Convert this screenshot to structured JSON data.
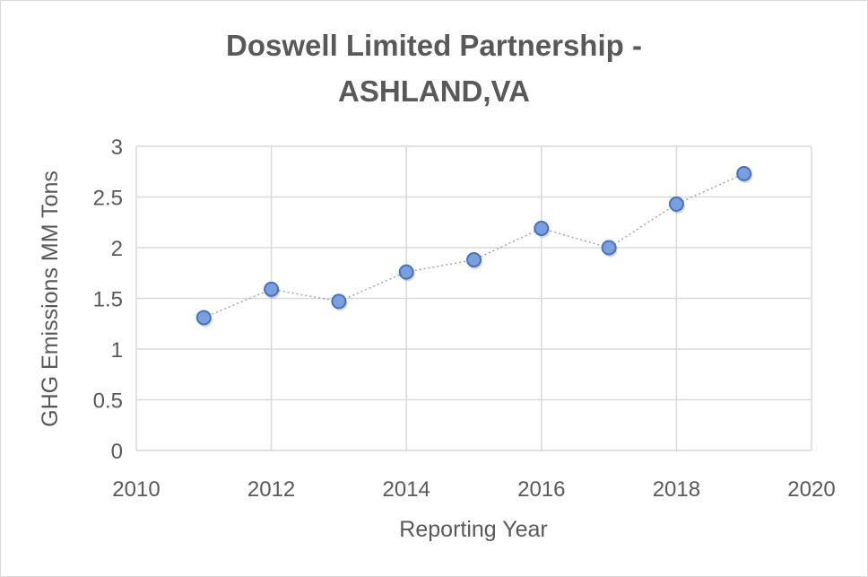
{
  "chart_data": {
    "type": "scatter",
    "title_lines": [
      "Doswell Limited Partnership -",
      "ASHLAND,VA"
    ],
    "xlabel": "Reporting Year",
    "ylabel": "GHG Emissions MM Tons",
    "xlim": [
      2010,
      2020
    ],
    "ylim": [
      0,
      3
    ],
    "xticks": [
      2010,
      2012,
      2014,
      2016,
      2018,
      2020
    ],
    "yticks": [
      0,
      0.5,
      1,
      1.5,
      2,
      2.5,
      3
    ],
    "grid": true,
    "x": [
      2011,
      2012,
      2013,
      2014,
      2015,
      2016,
      2017,
      2018,
      2019
    ],
    "y": [
      1.31,
      1.59,
      1.47,
      1.76,
      1.88,
      2.19,
      2.0,
      2.43,
      2.73
    ],
    "marker_color": "#7a9fdc",
    "marker_edge": "#4472c4",
    "line_color": "#a6a6a6"
  }
}
